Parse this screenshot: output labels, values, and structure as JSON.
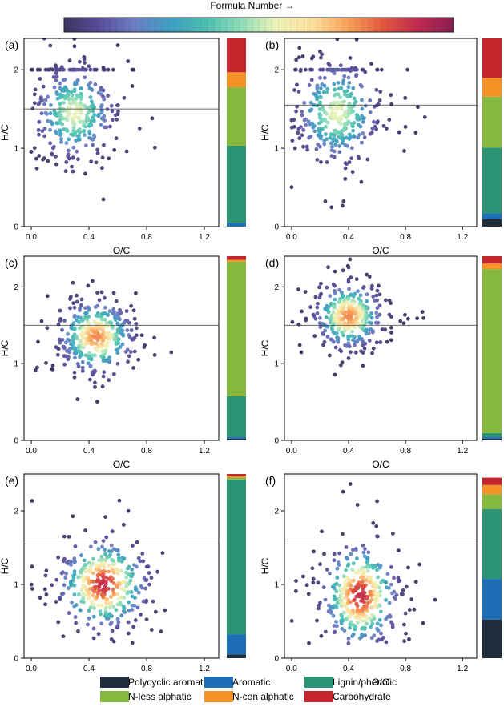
{
  "colorbar": {
    "title": "Formula Number →",
    "stops": [
      "#3b3561",
      "#5a4e9a",
      "#6d7fc4",
      "#3f9fc3",
      "#4cbfb0",
      "#8fdcb8",
      "#eef3b8",
      "#fde1a0",
      "#f7a35a",
      "#e4583f",
      "#c02a50",
      "#8a1f52"
    ]
  },
  "legend": [
    {
      "label": "Polycyclic aromatic",
      "color": "#1f2d3d"
    },
    {
      "label": "Aromatic",
      "color": "#1f6db4"
    },
    {
      "label": "Lignin/phenolic",
      "color": "#2c9474"
    },
    {
      "label": "N-less alphatic",
      "color": "#86b73f"
    },
    {
      "label": "N-con alphatic",
      "color": "#f39327"
    },
    {
      "label": "Carbohydrate",
      "color": "#c4262e"
    }
  ],
  "axes": {
    "xlabel": "O/C",
    "ylabel": "H/C"
  },
  "chart_data": [
    {
      "type": "scatter",
      "panel": "(a)",
      "xlabel": "O/C",
      "ylabel": "H/C",
      "xlim": [
        -0.05,
        1.3
      ],
      "ylim": [
        0,
        2.4
      ],
      "xticks": [
        "0.0",
        "0.4",
        "0.8",
        "1.2"
      ],
      "yticks": [
        "0",
        "1",
        "2"
      ],
      "hline": 1.5,
      "grid": false,
      "density_center": [
        0.3,
        1.45
      ],
      "density_peak": "pale-yellow",
      "composition": [
        {
          "class": "Polycyclic aromatic",
          "fraction": 0.0
        },
        {
          "class": "Aromatic",
          "fraction": 0.02
        },
        {
          "class": "Lignin/phenolic",
          "fraction": 0.41
        },
        {
          "class": "N-less alphatic",
          "fraction": 0.31
        },
        {
          "class": "N-con alphatic",
          "fraction": 0.08
        },
        {
          "class": "Carbohydrate",
          "fraction": 0.18
        }
      ]
    },
    {
      "type": "scatter",
      "panel": "(b)",
      "xlabel": "O/C",
      "ylabel": "H/C",
      "xlim": [
        -0.05,
        1.3
      ],
      "ylim": [
        0,
        2.4
      ],
      "xticks": [
        "0.0",
        "0.4",
        "0.8",
        "1.2"
      ],
      "yticks": [
        "0",
        "1",
        "2"
      ],
      "hline": 1.55,
      "grid": false,
      "density_center": [
        0.32,
        1.45
      ],
      "density_peak": "pale-yellow",
      "composition": [
        {
          "class": "Polycyclic aromatic",
          "fraction": 0.04
        },
        {
          "class": "Aromatic",
          "fraction": 0.03
        },
        {
          "class": "Lignin/phenolic",
          "fraction": 0.35
        },
        {
          "class": "N-less alphatic",
          "fraction": 0.27
        },
        {
          "class": "N-con alphatic",
          "fraction": 0.1
        },
        {
          "class": "Carbohydrate",
          "fraction": 0.21
        }
      ]
    },
    {
      "type": "scatter",
      "panel": "(c)",
      "xlabel": "O/C",
      "ylabel": "H/C",
      "xlim": [
        -0.05,
        1.3
      ],
      "ylim": [
        0,
        2.4
      ],
      "xticks": [
        "0.0",
        "0.4",
        "0.8",
        "1.2"
      ],
      "yticks": [
        "0",
        "1",
        "2"
      ],
      "hline": 1.5,
      "grid": false,
      "density_center": [
        0.45,
        1.35
      ],
      "density_peak": "orange",
      "composition": [
        {
          "class": "Polycyclic aromatic",
          "fraction": 0.01
        },
        {
          "class": "Aromatic",
          "fraction": 0.01
        },
        {
          "class": "Lignin/phenolic",
          "fraction": 0.22
        },
        {
          "class": "N-less alphatic",
          "fraction": 0.73
        },
        {
          "class": "N-con alphatic",
          "fraction": 0.01
        },
        {
          "class": "Carbohydrate",
          "fraction": 0.02
        }
      ]
    },
    {
      "type": "scatter",
      "panel": "(d)",
      "xlabel": "O/C",
      "ylabel": "H/C",
      "xlim": [
        -0.05,
        1.3
      ],
      "ylim": [
        0,
        2.4
      ],
      "xticks": [
        "0.0",
        "0.4",
        "0.8",
        "1.2"
      ],
      "yticks": [
        "0",
        "1",
        "2"
      ],
      "hline": 1.5,
      "grid": false,
      "density_center": [
        0.4,
        1.62
      ],
      "density_peak": "orange",
      "composition": [
        {
          "class": "Polycyclic aromatic",
          "fraction": 0.01
        },
        {
          "class": "Aromatic",
          "fraction": 0.01
        },
        {
          "class": "Lignin/phenolic",
          "fraction": 0.02
        },
        {
          "class": "N-less alphatic",
          "fraction": 0.89
        },
        {
          "class": "N-con alphatic",
          "fraction": 0.03
        },
        {
          "class": "Carbohydrate",
          "fraction": 0.04
        }
      ]
    },
    {
      "type": "scatter",
      "panel": "(e)",
      "xlabel": "O/C",
      "ylabel": "H/C",
      "xlim": [
        -0.05,
        1.3
      ],
      "ylim": [
        0,
        2.5
      ],
      "xticks": [
        "0.0",
        "0.4",
        "0.8",
        "1.2"
      ],
      "yticks": [
        "0",
        "1",
        "2"
      ],
      "hline": 1.55,
      "grid": false,
      "density_center": [
        0.5,
        1.0
      ],
      "density_peak": "red",
      "composition": [
        {
          "class": "Polycyclic aromatic",
          "fraction": 0.02
        },
        {
          "class": "Aromatic",
          "fraction": 0.11
        },
        {
          "class": "Lignin/phenolic",
          "fraction": 0.84
        },
        {
          "class": "N-less alphatic",
          "fraction": 0.01
        },
        {
          "class": "N-con alphatic",
          "fraction": 0.01
        },
        {
          "class": "Carbohydrate",
          "fraction": 0.01
        }
      ]
    },
    {
      "type": "scatter",
      "panel": "(f)",
      "xlabel": "O/C",
      "ylabel": "H/C",
      "xlim": [
        -0.05,
        1.3
      ],
      "ylim": [
        0,
        2.5
      ],
      "xticks": [
        "0.0",
        "0.4",
        "0.8",
        "1.2"
      ],
      "yticks": [
        "0",
        "1",
        "2"
      ],
      "hline": 1.55,
      "grid": false,
      "density_center": [
        0.48,
        0.85
      ],
      "density_peak": "red",
      "composition": [
        {
          "class": "Polycyclic aromatic",
          "fraction": 0.21
        },
        {
          "class": "Aromatic",
          "fraction": 0.22
        },
        {
          "class": "Lignin/phenolic",
          "fraction": 0.38
        },
        {
          "class": "N-less alphatic",
          "fraction": 0.08
        },
        {
          "class": "N-con alphatic",
          "fraction": 0.05
        },
        {
          "class": "Carbohydrate",
          "fraction": 0.04
        }
      ]
    }
  ]
}
